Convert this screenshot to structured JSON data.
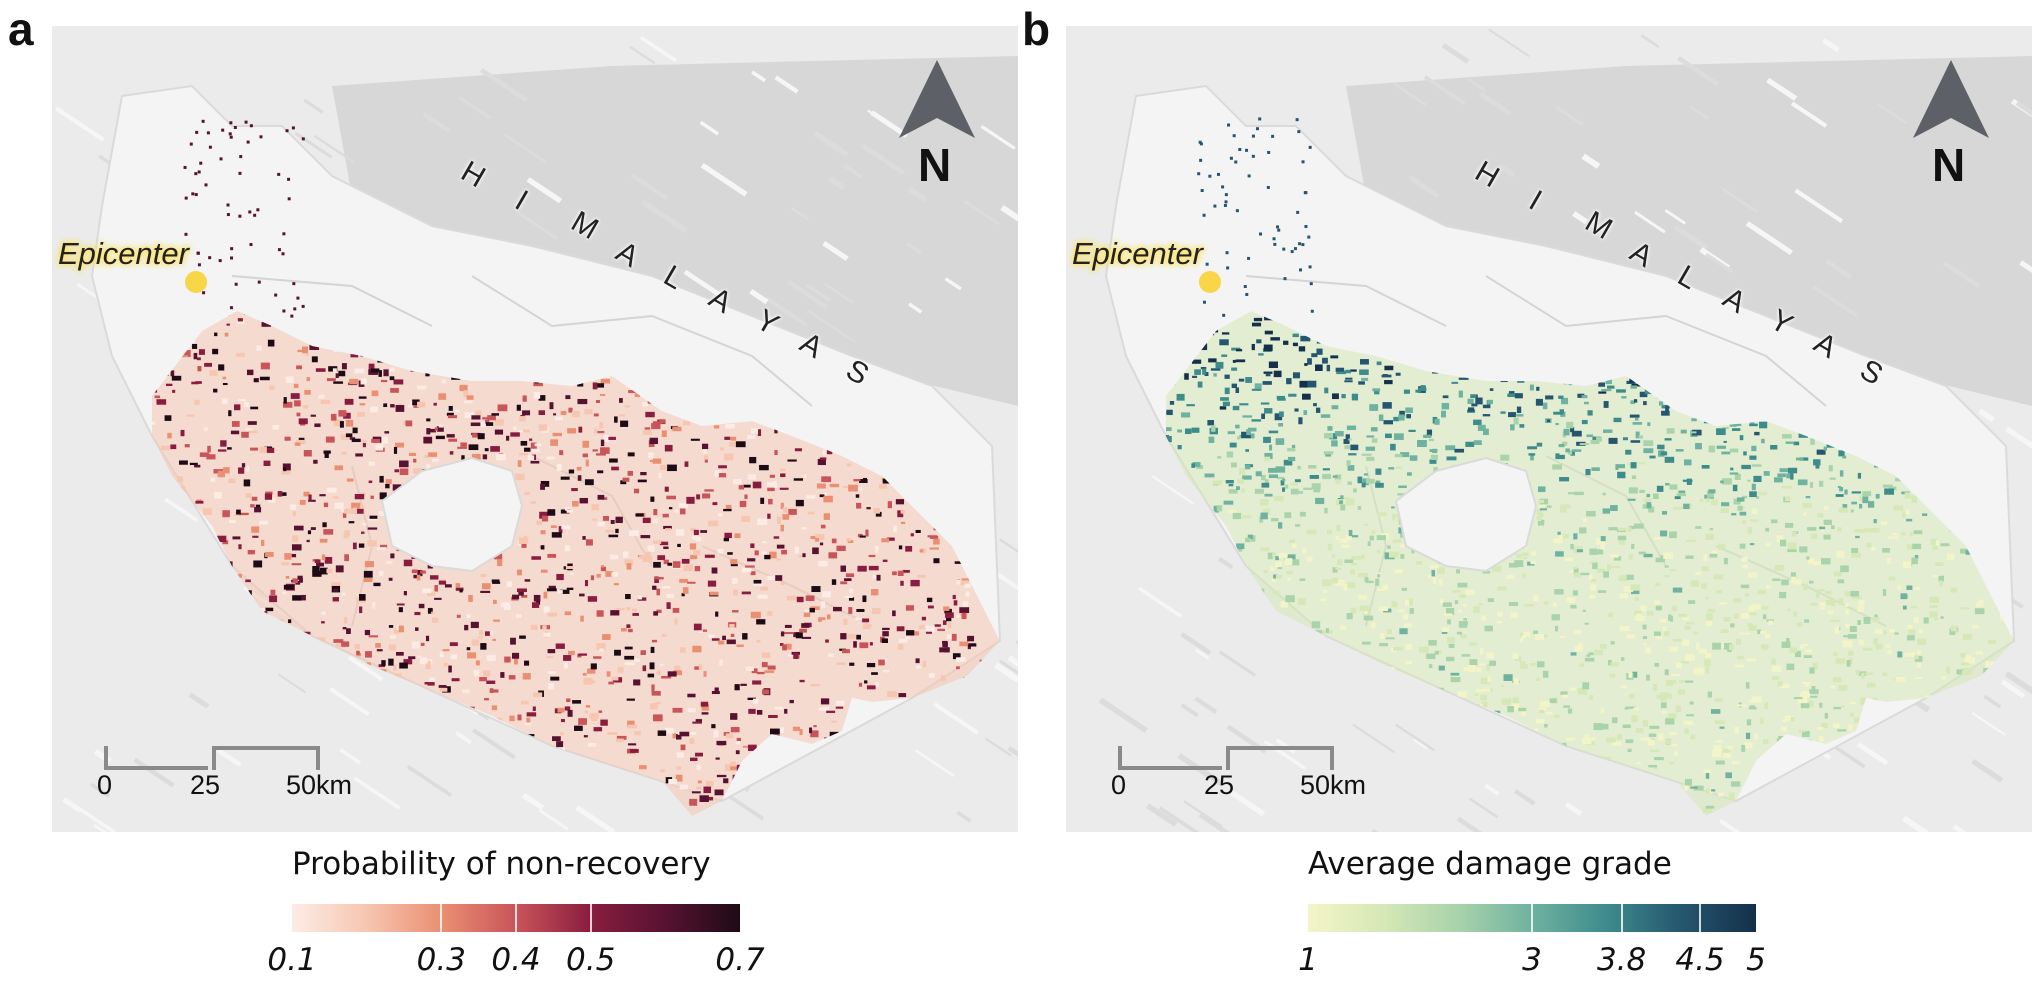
{
  "panels": [
    {
      "letter": "a",
      "epicenter_label": "Epicenter",
      "range_name": [
        "H",
        "I",
        "M",
        "A",
        "L",
        "A",
        "Y",
        "A",
        "S"
      ],
      "north_label": "N",
      "scale": {
        "ticks": [
          "0",
          "25",
          "50km"
        ]
      },
      "legend": {
        "title": "Probability of non-recovery",
        "ticks": [
          "0.1",
          "0.3",
          "0.4",
          "0.5",
          "0.7"
        ],
        "tick_values": [
          0.1,
          0.3,
          0.4,
          0.5,
          0.7
        ],
        "range": [
          0.1,
          0.7
        ],
        "colors": [
          "#fdece6",
          "#f6c6b0",
          "#ea8f72",
          "#c9545a",
          "#8a1d3f",
          "#571231",
          "#1e0b16"
        ]
      }
    },
    {
      "letter": "b",
      "epicenter_label": "Epicenter",
      "range_name": [
        "H",
        "I",
        "M",
        "A",
        "L",
        "A",
        "Y",
        "A",
        "S"
      ],
      "north_label": "N",
      "scale": {
        "ticks": [
          "0",
          "25",
          "50km"
        ]
      },
      "legend": {
        "title": "Average damage grade",
        "ticks": [
          "1",
          "3",
          "3.8",
          "4.5",
          "5"
        ],
        "tick_values": [
          1,
          3,
          3.8,
          4.5,
          5
        ],
        "range": [
          1,
          5
        ],
        "colors": [
          "#f3f5c8",
          "#d6e8b6",
          "#a9d3ab",
          "#6fb2a0",
          "#3e8b8c",
          "#26566f",
          "#14304a"
        ]
      }
    }
  ]
}
